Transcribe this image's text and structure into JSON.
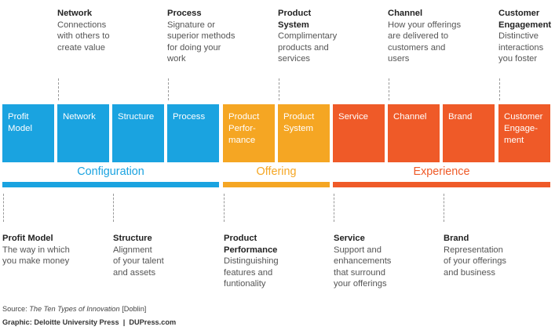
{
  "top_descriptions": [
    {
      "title": "Network",
      "body": "Connections\nwith others to\ncreate value"
    },
    {
      "title": "Process",
      "body": "Signature or\nsuperior methods\nfor doing your\nwork"
    },
    {
      "title": "Product\nSystem",
      "body": "Complimentary\nproducts and\nservices"
    },
    {
      "title": "Channel",
      "body": "How your offerings\nare delivered to\ncustomers and\nusers"
    },
    {
      "title": "Customer\nEngagement",
      "body": "Distinctive\ninteractions\nyou foster"
    }
  ],
  "boxes": [
    {
      "label": "Profit\nModel",
      "group": "configuration"
    },
    {
      "label": "Network",
      "group": "configuration"
    },
    {
      "label": "Structure",
      "group": "configuration"
    },
    {
      "label": "Process",
      "group": "configuration"
    },
    {
      "label": "Product\nPerfor-\nmance",
      "group": "offering"
    },
    {
      "label": "Product\nSystem",
      "group": "offering"
    },
    {
      "label": "Service",
      "group": "experience"
    },
    {
      "label": "Channel",
      "group": "experience"
    },
    {
      "label": "Brand",
      "group": "experience"
    },
    {
      "label": "Customer\nEngage-\nment",
      "group": "experience"
    }
  ],
  "categories": {
    "configuration": {
      "label": "Configuration",
      "color": "#1aa3e0"
    },
    "offering": {
      "label": "Offering",
      "color": "#f5a623"
    },
    "experience": {
      "label": "Experience",
      "color": "#ef5a28"
    }
  },
  "bottom_descriptions": [
    {
      "title": "Profit Model",
      "body": "The way in which\nyou make money"
    },
    {
      "title": "Structure",
      "body": "Alignment\nof your talent\nand assets"
    },
    {
      "title": "Product\nPerformance",
      "body": "Distinguishing\nfeatures and\nfuntionality"
    },
    {
      "title": "Service",
      "body": "Support and\nenhancements\nthat surround\nyour offerings"
    },
    {
      "title": "Brand",
      "body": "Representation\nof your offerings\nand business"
    }
  ],
  "footer": {
    "source_prefix": "Source: ",
    "source_title": "The Ten Types of Innovation",
    "source_suffix": " [Doblin]",
    "graphic": "Graphic: Deloitte University Press  |  DUPress.com"
  }
}
